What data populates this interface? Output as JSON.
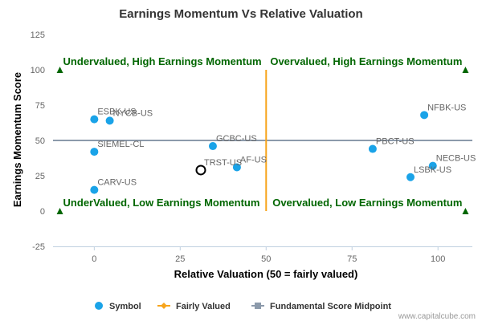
{
  "chart_data": {
    "type": "scatter",
    "title": "Earnings Momentum Vs Relative Valuation",
    "xlabel": "Relative Valuation (50 = fairly valued)",
    "ylabel": "Earnings Momentum Score",
    "xlim": [
      -12,
      110
    ],
    "ylim": [
      -25,
      125
    ],
    "x_ticks": [
      0,
      25,
      50,
      75,
      100
    ],
    "y_ticks": [
      -25,
      0,
      25,
      50,
      75,
      100,
      125
    ],
    "grid": false,
    "legend_position": "bottom",
    "colors": {
      "symbol": "#1aa3e8",
      "fairly_valued": "#f7a41c",
      "midpoint": "#8c9aab",
      "quadrant_text": "#006600",
      "highlight_outline": "#000000"
    },
    "series": [
      {
        "name": "Symbol",
        "points": [
          {
            "label": "ESBK-US",
            "x": 0,
            "y": 65
          },
          {
            "label": "NYCB-US",
            "x": 4.5,
            "y": 64
          },
          {
            "label": "SIEMEL-CL",
            "x": 0,
            "y": 42
          },
          {
            "label": "CARV-US",
            "x": 0,
            "y": 15
          },
          {
            "label": "GCBC-US",
            "x": 34.5,
            "y": 46
          },
          {
            "label": "AF-US",
            "x": 41.5,
            "y": 31
          },
          {
            "label": "NFBK-US",
            "x": 96,
            "y": 68
          },
          {
            "label": "PBCT-US",
            "x": 81,
            "y": 44
          },
          {
            "label": "NECB-US",
            "x": 98.5,
            "y": 32
          },
          {
            "label": "LSBK-US",
            "x": 92,
            "y": 24
          }
        ]
      },
      {
        "name": "Fairly Valued",
        "x": 50,
        "y_range": [
          0,
          100
        ]
      },
      {
        "name": "Fundamental Score Midpoint",
        "y": 50,
        "x_range": [
          -12,
          110
        ]
      }
    ],
    "highlighted_point": {
      "label": "TRST-US",
      "x": 31,
      "y": 29
    },
    "quadrant_labels": [
      {
        "text": "Undervalued, High Earnings Momentum",
        "x": -10,
        "y": 100
      },
      {
        "text": "Overvalued, High Earnings Momentum",
        "x": 108,
        "y": 100
      },
      {
        "text": "UnderValued, Low Earnings Momentum",
        "x": -10,
        "y": 0
      },
      {
        "text": "Overvalued, Low Earnings Momentum",
        "x": 108,
        "y": 0
      }
    ]
  },
  "legend": {
    "symbol_label": "Symbol",
    "fairly_valued_label": "Fairly Valued",
    "midpoint_label": "Fundamental Score Midpoint"
  },
  "credit": "www.capitalcube.com"
}
